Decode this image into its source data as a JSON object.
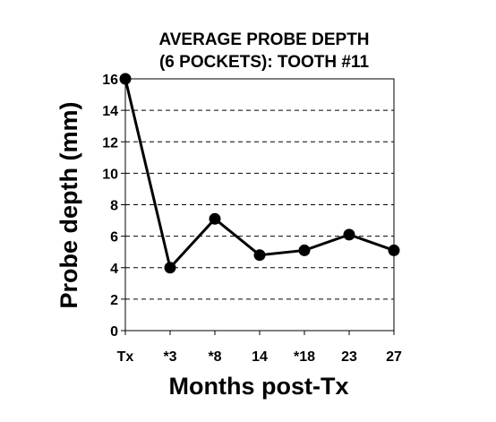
{
  "chart_data": {
    "type": "line",
    "title_lines": [
      "AVERAGE PROBE DEPTH",
      "(6 POCKETS): TOOTH #11"
    ],
    "xlabel": "Months post-Tx",
    "ylabel": "Probe depth (mm)",
    "categories": [
      "Tx",
      "*3",
      "*8",
      "14",
      "*18",
      "23",
      "27"
    ],
    "series": [
      {
        "values": [
          16,
          4,
          7.1,
          4.8,
          5.1,
          6.1,
          5.1
        ]
      }
    ],
    "ylim": [
      0,
      16
    ],
    "yticks": [
      "0",
      "2",
      "4",
      "6",
      "8",
      "10",
      "12",
      "14",
      "16"
    ],
    "grid": "horizontal-dashed",
    "legend": "none",
    "colors": {
      "line": "#000000",
      "marker": "#000000",
      "grid": "#000000",
      "background": "#ffffff"
    }
  }
}
